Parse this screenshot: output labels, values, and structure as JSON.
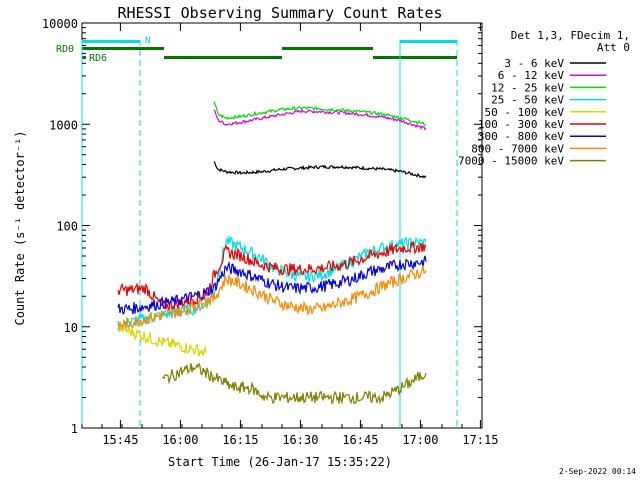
{
  "chart_data": {
    "type": "line",
    "title": "RHESSI Observing Summary Count Rates",
    "xlabel": "Start Time (26-Jan-17 15:35:22)",
    "ylabel": "Count Rate (s⁻¹ detector⁻¹)",
    "yscale": "log",
    "xlim_minutes": [
      0,
      100
    ],
    "ylim": [
      1,
      10000
    ],
    "x_ticks": [
      {
        "label": "15:45",
        "min": 9.6
      },
      {
        "label": "16:00",
        "min": 24.6
      },
      {
        "label": "16:15",
        "min": 39.6
      },
      {
        "label": "16:30",
        "min": 54.6
      },
      {
        "label": "16:45",
        "min": 69.6
      },
      {
        "label": "17:00",
        "min": 84.6
      },
      {
        "label": "17:15",
        "min": 99.6
      }
    ],
    "y_ticks": [
      {
        "label": "1",
        "value": 1
      },
      {
        "label": "10",
        "value": 10
      },
      {
        "label": "100",
        "value": 100
      },
      {
        "label": "1000",
        "value": 1000
      },
      {
        "label": "10000",
        "value": 10000
      }
    ],
    "legend_header": [
      "Det 1,3, FDecim 1,",
      "Att 0"
    ],
    "series": [
      {
        "name": "3 - 6 keV",
        "color": "#000000",
        "x": [
          33,
          34,
          36,
          40,
          45,
          50,
          55,
          60,
          65,
          70,
          75,
          80,
          86
        ],
        "y": [
          430,
          360,
          340,
          330,
          340,
          360,
          370,
          380,
          380,
          370,
          360,
          340,
          300
        ]
      },
      {
        "name": "6 - 12 keV",
        "color": "#e000e0",
        "x": [
          33,
          34,
          36,
          40,
          45,
          50,
          55,
          60,
          65,
          70,
          75,
          80,
          86
        ],
        "y": [
          1400,
          1100,
          1000,
          1050,
          1150,
          1250,
          1350,
          1330,
          1300,
          1250,
          1180,
          1080,
          900
        ]
      },
      {
        "name": "12 - 25 keV",
        "color": "#00dd00",
        "x": [
          33,
          34,
          36,
          40,
          45,
          50,
          55,
          60,
          65,
          70,
          75,
          80,
          86
        ],
        "y": [
          1700,
          1250,
          1150,
          1200,
          1300,
          1400,
          1450,
          1420,
          1380,
          1330,
          1260,
          1150,
          1000
        ]
      },
      {
        "name": "25 - 50 keV",
        "color": "#00e0e0",
        "x": [
          9,
          12,
          16,
          20,
          24,
          28,
          31,
          33,
          36,
          40,
          44,
          48,
          52,
          56,
          60,
          64,
          68,
          72,
          76,
          80,
          86
        ],
        "y": [
          10,
          11,
          12,
          13,
          14,
          15,
          17,
          22,
          70,
          60,
          50,
          38,
          33,
          31,
          33,
          38,
          45,
          55,
          62,
          66,
          68
        ]
      },
      {
        "name": "50 - 100 keV",
        "color": "#d8d800",
        "x": [
          9,
          12,
          16,
          20,
          24,
          28,
          31
        ],
        "y": [
          10,
          9,
          8,
          7,
          6.5,
          6,
          5.5
        ]
      },
      {
        "name": "100 - 300 keV",
        "color": "#ee0000",
        "x": [
          9,
          12,
          16,
          20,
          24,
          28,
          31,
          33,
          36,
          40,
          44,
          48,
          52,
          56,
          60,
          64,
          68,
          72,
          76,
          80,
          86
        ],
        "y": [
          23,
          23,
          24,
          16,
          17,
          19,
          20,
          32,
          55,
          50,
          42,
          38,
          37,
          37,
          38,
          40,
          44,
          50,
          55,
          60,
          62
        ]
      },
      {
        "name": "300 - 800 keV",
        "color": "#0000ee",
        "x": [
          9,
          12,
          16,
          20,
          24,
          28,
          31,
          33,
          36,
          40,
          44,
          48,
          52,
          56,
          60,
          64,
          68,
          72,
          76,
          80,
          86
        ],
        "y": [
          15,
          15,
          16,
          17,
          18,
          20,
          22,
          24,
          38,
          35,
          30,
          26,
          24,
          24,
          25,
          27,
          30,
          35,
          38,
          42,
          44
        ]
      },
      {
        "name": "800 - 7000 keV",
        "color": "#ff8800",
        "x": [
          9,
          12,
          16,
          20,
          24,
          28,
          31,
          33,
          36,
          40,
          44,
          48,
          52,
          56,
          60,
          64,
          68,
          72,
          76,
          80,
          86
        ],
        "y": [
          10,
          11,
          12,
          13,
          14,
          16,
          18,
          19,
          30,
          26,
          22,
          18,
          16,
          15,
          15,
          17,
          19,
          22,
          26,
          30,
          36
        ]
      },
      {
        "name": "7000 - 15000 keV",
        "color": "#808000",
        "x": [
          20,
          24,
          28,
          31,
          34,
          38,
          42,
          46,
          50,
          55,
          60,
          65,
          70,
          75,
          80,
          86
        ],
        "y": [
          3,
          3.5,
          4,
          3.5,
          3,
          2.5,
          2.5,
          2,
          2,
          2,
          2,
          2,
          2,
          2,
          2.5,
          3.5
        ]
      }
    ],
    "annotations": {
      "rd0_label": "RD0",
      "rd6_label": "RD6",
      "n_label": "N"
    }
  },
  "footer": {
    "date_stamp": "2-Sep-2022 00:14"
  }
}
